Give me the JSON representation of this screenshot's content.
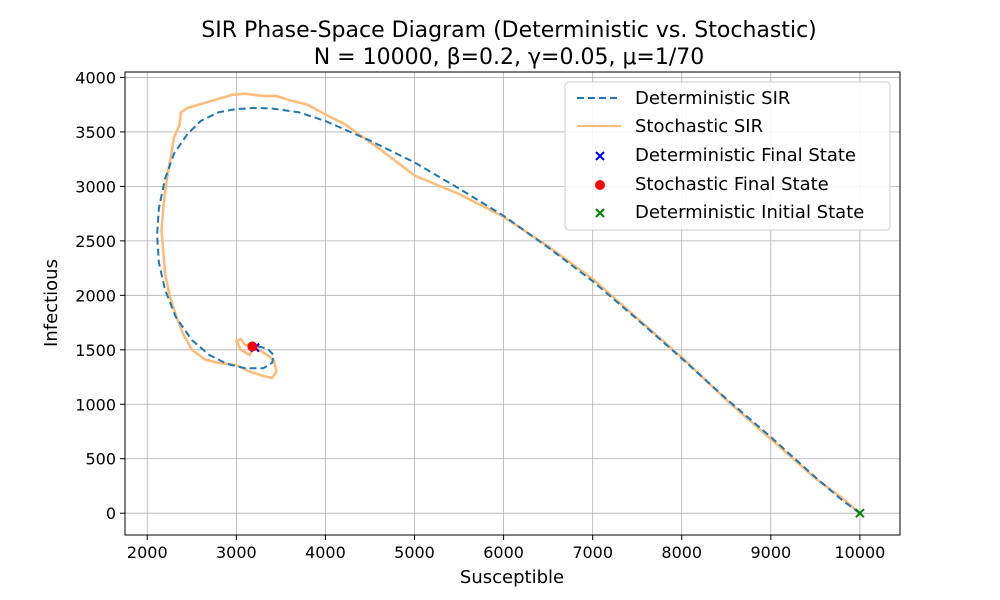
{
  "chart_data": {
    "type": "line",
    "title": "SIR Phase-Space Diagram (Deterministic vs. Stochastic)",
    "subtitle": "N = 10000, β=0.2, γ=0.05, μ=1/70",
    "xlabel": "Susceptible",
    "ylabel": "Infectious",
    "xlim": [
      1750,
      10450
    ],
    "ylim": [
      -200,
      4050
    ],
    "xticks": [
      2000,
      3000,
      4000,
      5000,
      6000,
      7000,
      8000,
      9000,
      10000
    ],
    "yticks": [
      0,
      500,
      1000,
      1500,
      2000,
      2500,
      3000,
      3500,
      4000
    ],
    "grid": true,
    "legend_position": "top-right",
    "series": [
      {
        "name": "Deterministic SIR",
        "style": "dashed",
        "color": "#1f77b4",
        "points": [
          [
            10000,
            0
          ],
          [
            9800,
            120
          ],
          [
            9500,
            330
          ],
          [
            9000,
            700
          ],
          [
            8500,
            1050
          ],
          [
            8000,
            1420
          ],
          [
            7500,
            1780
          ],
          [
            7000,
            2130
          ],
          [
            6500,
            2440
          ],
          [
            6000,
            2730
          ],
          [
            5500,
            2980
          ],
          [
            5000,
            3220
          ],
          [
            4500,
            3420
          ],
          [
            4000,
            3600
          ],
          [
            3700,
            3680
          ],
          [
            3400,
            3715
          ],
          [
            3200,
            3720
          ],
          [
            3000,
            3710
          ],
          [
            2800,
            3680
          ],
          [
            2600,
            3600
          ],
          [
            2450,
            3480
          ],
          [
            2300,
            3300
          ],
          [
            2200,
            3070
          ],
          [
            2130,
            2800
          ],
          [
            2110,
            2550
          ],
          [
            2130,
            2300
          ],
          [
            2200,
            2050
          ],
          [
            2320,
            1800
          ],
          [
            2500,
            1590
          ],
          [
            2700,
            1450
          ],
          [
            2900,
            1370
          ],
          [
            3100,
            1330
          ],
          [
            3300,
            1330
          ],
          [
            3400,
            1380
          ],
          [
            3420,
            1450
          ],
          [
            3350,
            1510
          ],
          [
            3250,
            1530
          ],
          [
            3200,
            1520
          ]
        ]
      },
      {
        "name": "Stochastic SIR",
        "style": "solid",
        "color": "#ffbb78",
        "points": [
          [
            10000,
            0
          ],
          [
            9800,
            140
          ],
          [
            9500,
            320
          ],
          [
            9000,
            680
          ],
          [
            8500,
            1040
          ],
          [
            8000,
            1430
          ],
          [
            7500,
            1790
          ],
          [
            7000,
            2150
          ],
          [
            6500,
            2450
          ],
          [
            6000,
            2720
          ],
          [
            5500,
            2930
          ],
          [
            5000,
            3100
          ],
          [
            4600,
            3350
          ],
          [
            4200,
            3580
          ],
          [
            4000,
            3660
          ],
          [
            3800,
            3750
          ],
          [
            3600,
            3790
          ],
          [
            3450,
            3830
          ],
          [
            3300,
            3830
          ],
          [
            3100,
            3850
          ],
          [
            2950,
            3840
          ],
          [
            2700,
            3780
          ],
          [
            2450,
            3720
          ],
          [
            2380,
            3680
          ],
          [
            2360,
            3560
          ],
          [
            2300,
            3450
          ],
          [
            2270,
            3300
          ],
          [
            2230,
            3120
          ],
          [
            2200,
            2950
          ],
          [
            2180,
            2800
          ],
          [
            2160,
            2600
          ],
          [
            2180,
            2400
          ],
          [
            2200,
            2200
          ],
          [
            2250,
            2000
          ],
          [
            2320,
            1820
          ],
          [
            2400,
            1650
          ],
          [
            2500,
            1500
          ],
          [
            2650,
            1410
          ],
          [
            2800,
            1380
          ],
          [
            3000,
            1360
          ],
          [
            3150,
            1300
          ],
          [
            3300,
            1260
          ],
          [
            3400,
            1240
          ],
          [
            3450,
            1300
          ],
          [
            3420,
            1400
          ],
          [
            3350,
            1450
          ],
          [
            3250,
            1500
          ],
          [
            3200,
            1560
          ],
          [
            3100,
            1540
          ],
          [
            3050,
            1600
          ],
          [
            3000,
            1580
          ],
          [
            3050,
            1500
          ],
          [
            3150,
            1450
          ],
          [
            3200,
            1530
          ]
        ]
      }
    ],
    "markers": [
      {
        "name": "Deterministic Final State",
        "symbol": "x",
        "color": "#0000ff",
        "x": 3210,
        "y": 1520
      },
      {
        "name": "Stochastic Final State",
        "symbol": "o",
        "color": "#ff0000",
        "x": 3180,
        "y": 1530
      },
      {
        "name": "Deterministic Initial State",
        "symbol": "x",
        "color": "#008000",
        "x": 10000,
        "y": 0
      }
    ]
  }
}
